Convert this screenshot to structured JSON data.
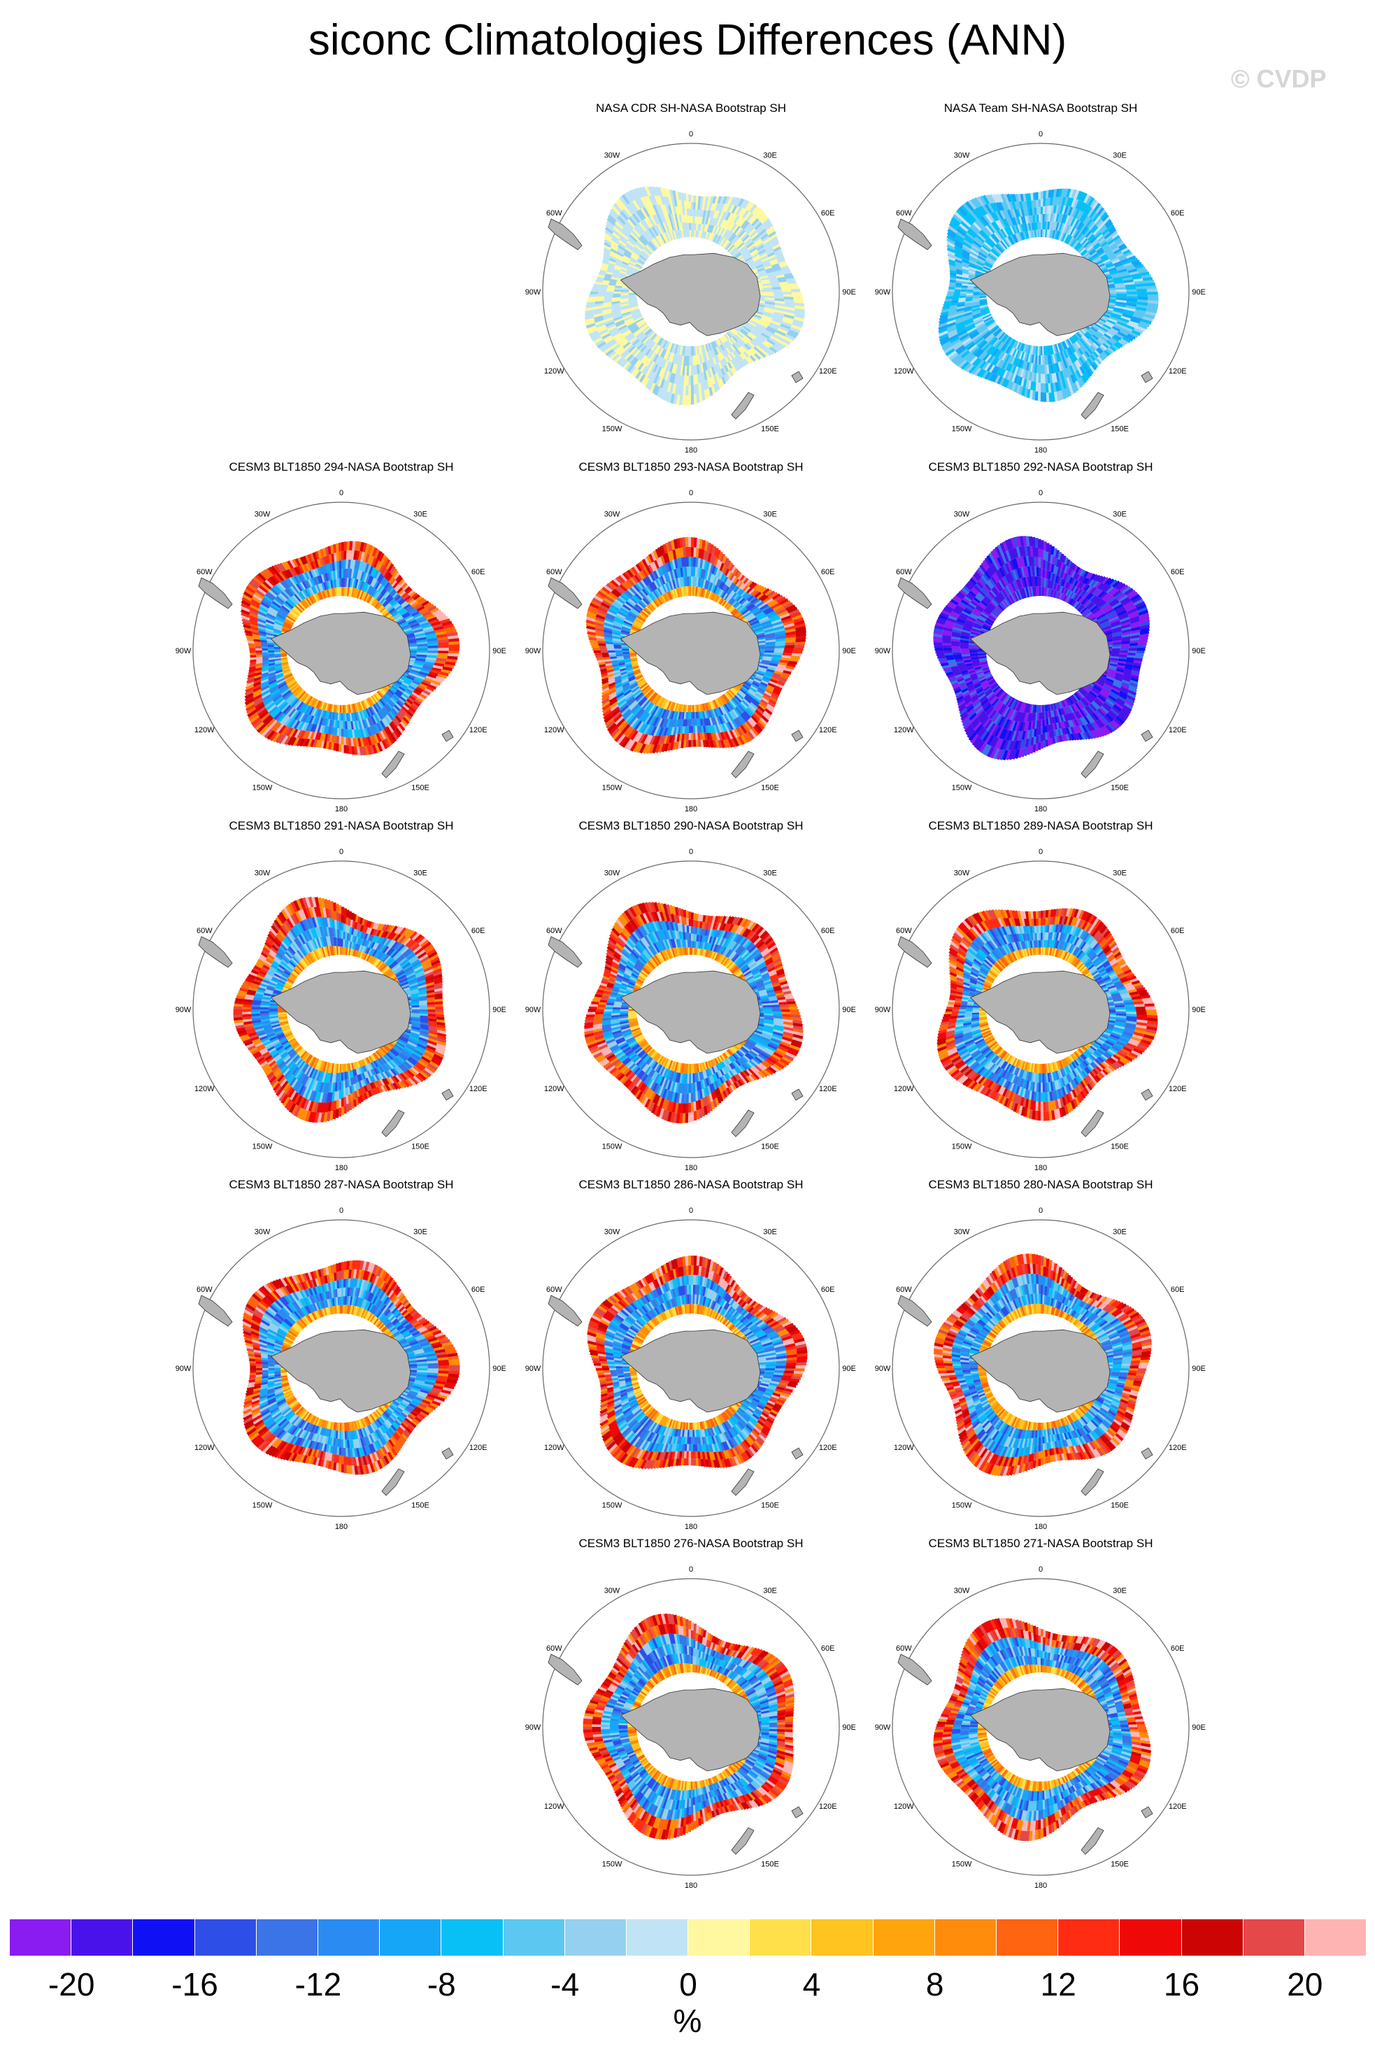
{
  "title": "siconc Climatologies Differences (ANN)",
  "watermark": "© CVDP",
  "lon_labels": [
    "0",
    "30E",
    "60E",
    "90E",
    "120E",
    "150E",
    "180",
    "150W",
    "120W",
    "90W",
    "60W",
    "30W"
  ],
  "panels": [
    {
      "title": "NASA CDR SH-NASA Bootstrap SH",
      "pattern": "cdr"
    },
    {
      "title": "NASA Team SH-NASA Bootstrap SH",
      "pattern": "team"
    },
    {
      "title": "CESM3 BLT1850 294-NASA Bootstrap SH",
      "pattern": "model"
    },
    {
      "title": "CESM3 BLT1850 293-NASA Bootstrap SH",
      "pattern": "model"
    },
    {
      "title": "CESM3 BLT1850 292-NASA Bootstrap SH",
      "pattern": "strongneg"
    },
    {
      "title": "CESM3 BLT1850 291-NASA Bootstrap SH",
      "pattern": "model"
    },
    {
      "title": "CESM3 BLT1850 290-NASA Bootstrap SH",
      "pattern": "model"
    },
    {
      "title": "CESM3 BLT1850 289-NASA Bootstrap SH",
      "pattern": "model"
    },
    {
      "title": "CESM3 BLT1850 287-NASA Bootstrap SH",
      "pattern": "model"
    },
    {
      "title": "CESM3 BLT1850 286-NASA Bootstrap SH",
      "pattern": "model"
    },
    {
      "title": "CESM3 BLT1850 280-NASA Bootstrap SH",
      "pattern": "model"
    },
    {
      "title": "CESM3 BLT1850 276-NASA Bootstrap SH",
      "pattern": "model"
    },
    {
      "title": "CESM3 BLT1850 271-NASA Bootstrap SH",
      "pattern": "model"
    }
  ],
  "colorbar": {
    "colors": [
      "#8a1cf2",
      "#4a12ea",
      "#1010f5",
      "#2e4ee8",
      "#3a74e6",
      "#2a8cf2",
      "#16a6f8",
      "#08c0f6",
      "#5cc8f2",
      "#96d0f0",
      "#c0e4f6",
      "#fff8a0",
      "#ffe04a",
      "#ffc420",
      "#ffa40c",
      "#ff8c0a",
      "#ff6410",
      "#ff2c14",
      "#ee0808",
      "#cc0404",
      "#e44848",
      "#ffb4b4"
    ],
    "ticks": [
      "-20",
      "-16",
      "-12",
      "-8",
      "-4",
      "0",
      "4",
      "8",
      "12",
      "16",
      "20"
    ],
    "units": "%"
  }
}
